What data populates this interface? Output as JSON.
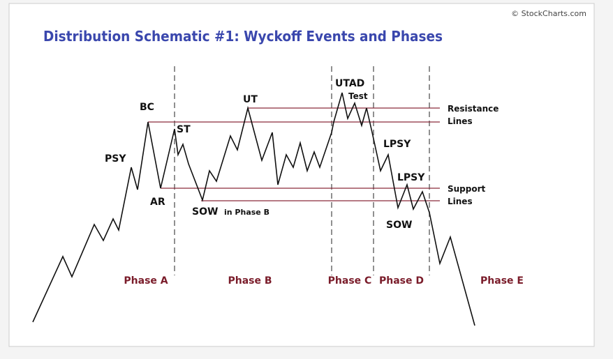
{
  "title": "Distribution Schematic #1: Wyckoff Events and Phases",
  "copyright": "© StockCharts.com",
  "events": [
    "PSY",
    "BC",
    "ST",
    "AR",
    "UT",
    "SOW",
    "in Phase B",
    "UTAD",
    "Test",
    "LPSY",
    "LPSY",
    "SOW"
  ],
  "lines": {
    "resistance": [
      "Resistance",
      "Lines"
    ],
    "support": [
      "Support",
      "Lines"
    ]
  },
  "phases": [
    "Phase A",
    "Phase B",
    "Phase C",
    "Phase D",
    "Phase E"
  ]
}
